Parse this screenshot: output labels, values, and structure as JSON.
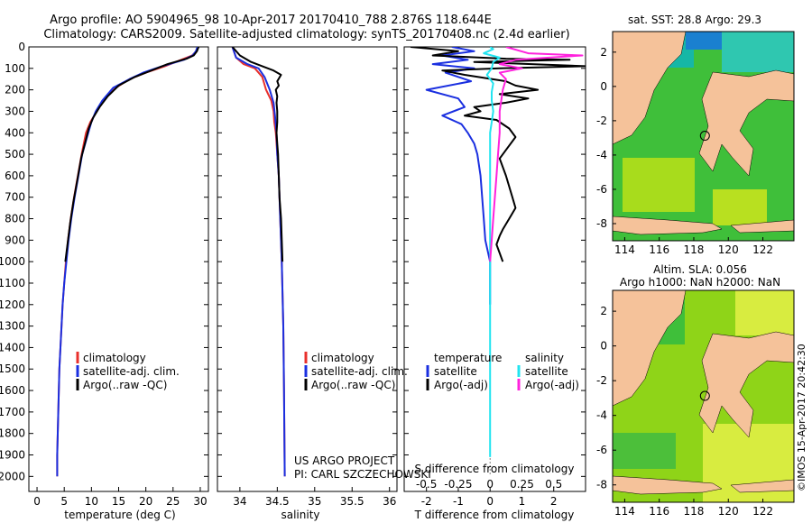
{
  "header": {
    "line1": "Argo profile: AO 5904965_98 10-Apr-2017 20170410_788 2.876S 118.644E",
    "line2": "Climatology: CARS2009. Satellite-adjusted climatology: synTS_20170408.nc (2.4d earlier)"
  },
  "credits": {
    "project": "US ARGO PROJECT",
    "pi": "PI: CARL SZCZECHOWSKI",
    "stamp": "©IMOS 15-Apr-2017 20:42:30"
  },
  "colors": {
    "climatology": "#e8302c",
    "satellite": "#1a2fe0",
    "argo": "#000000",
    "sal_satellite": "#22e4f0",
    "sal_argo": "#ff22dd",
    "land": "#f5c29a"
  },
  "chart_data": [
    {
      "type": "line",
      "id": "temperature",
      "xlabel": "temperature (deg C)",
      "xlim": [
        -1.5,
        31.5
      ],
      "xticks": [
        0,
        5,
        10,
        15,
        20,
        25,
        30
      ],
      "ylim": [
        2070,
        0
      ],
      "yticks": [
        0,
        100,
        200,
        300,
        400,
        500,
        600,
        700,
        800,
        900,
        1000,
        1100,
        1200,
        1300,
        1400,
        1500,
        1600,
        1700,
        1800,
        1900,
        2000
      ],
      "legend": [
        "climatology",
        "satellite-adj. clim.",
        "Argo(..raw -QC)"
      ],
      "series": [
        {
          "name": "climatology",
          "color": "#e8302c",
          "points": [
            [
              29.6,
              0
            ],
            [
              29.3,
              20
            ],
            [
              28.5,
              40
            ],
            [
              26.5,
              60
            ],
            [
              23.5,
              90
            ],
            [
              20,
              120
            ],
            [
              17,
              150
            ],
            [
              14.5,
              190
            ],
            [
              12.5,
              240
            ],
            [
              11,
              300
            ],
            [
              9.8,
              350
            ],
            [
              9,
              400
            ],
            [
              8.2,
              500
            ],
            [
              7.5,
              600
            ],
            [
              6.8,
              700
            ],
            [
              6.2,
              800
            ],
            [
              5.7,
              900
            ],
            [
              5.3,
              1000
            ],
            [
              5,
              1100
            ],
            [
              4.7,
              1200
            ],
            [
              4.5,
              1300
            ],
            [
              4.3,
              1400
            ],
            [
              4.1,
              1500
            ],
            [
              4,
              1600
            ],
            [
              3.9,
              1700
            ],
            [
              3.8,
              1800
            ],
            [
              3.7,
              1900
            ],
            [
              3.7,
              2000
            ]
          ]
        },
        {
          "name": "satellite-adj. clim.",
          "color": "#1a2fe0",
          "points": [
            [
              29.5,
              0
            ],
            [
              29.2,
              20
            ],
            [
              28.6,
              40
            ],
            [
              27,
              60
            ],
            [
              23,
              90
            ],
            [
              19.5,
              120
            ],
            [
              17,
              150
            ],
            [
              14,
              190
            ],
            [
              12,
              250
            ],
            [
              10.8,
              300
            ],
            [
              10,
              350
            ],
            [
              9.2,
              420
            ],
            [
              8.3,
              500
            ],
            [
              7.6,
              600
            ],
            [
              6.9,
              700
            ],
            [
              6.3,
              800
            ],
            [
              5.8,
              900
            ],
            [
              5.4,
              1000
            ],
            [
              5,
              1100
            ],
            [
              4.7,
              1200
            ],
            [
              4.5,
              1300
            ],
            [
              4.3,
              1400
            ],
            [
              4.1,
              1500
            ],
            [
              4,
              1600
            ],
            [
              3.9,
              1700
            ],
            [
              3.8,
              1800
            ],
            [
              3.7,
              1900
            ],
            [
              3.7,
              2000
            ]
          ]
        },
        {
          "name": "Argo(..raw -QC)",
          "color": "#000000",
          "points": [
            [
              29.7,
              0
            ],
            [
              29.4,
              20
            ],
            [
              28.8,
              40
            ],
            [
              27.5,
              55
            ],
            [
              24,
              80
            ],
            [
              21,
              110
            ],
            [
              18,
              140
            ],
            [
              15,
              180
            ],
            [
              13,
              230
            ],
            [
              11.5,
              280
            ],
            [
              10.3,
              330
            ],
            [
              9.5,
              380
            ],
            [
              8.8,
              450
            ],
            [
              8.1,
              520
            ],
            [
              7.4,
              620
            ],
            [
              6.7,
              720
            ],
            [
              6.1,
              820
            ],
            [
              5.6,
              920
            ],
            [
              5.2,
              1000
            ]
          ]
        }
      ]
    },
    {
      "type": "line",
      "id": "salinity",
      "xlabel": "salinity",
      "xlim": [
        33.7,
        36.1
      ],
      "xticks": [
        34,
        34.5,
        35,
        35.5,
        36
      ],
      "ylim": [
        2070,
        0
      ],
      "legend": [
        "climatology",
        "satellite-adj. clim.",
        "Argo(..raw -QC)"
      ],
      "series": [
        {
          "name": "climatology",
          "color": "#e8302c",
          "points": [
            [
              33.9,
              0
            ],
            [
              33.95,
              50
            ],
            [
              34.05,
              80
            ],
            [
              34.2,
              100
            ],
            [
              34.3,
              140
            ],
            [
              34.35,
              200
            ],
            [
              34.42,
              250
            ],
            [
              34.45,
              300
            ],
            [
              34.46,
              350
            ],
            [
              34.48,
              400
            ],
            [
              34.5,
              500
            ],
            [
              34.52,
              600
            ],
            [
              34.54,
              800
            ],
            [
              34.56,
              1000
            ],
            [
              34.58,
              1300
            ],
            [
              34.59,
              1600
            ],
            [
              34.6,
              2000
            ]
          ]
        },
        {
          "name": "satellite-adj. clim.",
          "color": "#1a2fe0",
          "points": [
            [
              33.9,
              0
            ],
            [
              33.95,
              50
            ],
            [
              34.1,
              80
            ],
            [
              34.25,
              100
            ],
            [
              34.33,
              140
            ],
            [
              34.4,
              200
            ],
            [
              34.45,
              260
            ],
            [
              34.47,
              320
            ],
            [
              34.49,
              400
            ],
            [
              34.5,
              500
            ],
            [
              34.52,
              600
            ],
            [
              34.54,
              800
            ],
            [
              34.56,
              1000
            ],
            [
              34.58,
              1300
            ],
            [
              34.59,
              1600
            ],
            [
              34.6,
              2000
            ]
          ]
        },
        {
          "name": "Argo(..raw -QC)",
          "color": "#000000",
          "points": [
            [
              33.9,
              0
            ],
            [
              34,
              40
            ],
            [
              34.15,
              70
            ],
            [
              34.3,
              90
            ],
            [
              34.45,
              110
            ],
            [
              34.55,
              130
            ],
            [
              34.5,
              160
            ],
            [
              34.52,
              180
            ],
            [
              34.48,
              200
            ],
            [
              34.5,
              230
            ],
            [
              34.49,
              260
            ],
            [
              34.5,
              300
            ],
            [
              34.5,
              350
            ],
            [
              34.49,
              400
            ],
            [
              34.5,
              450
            ],
            [
              34.51,
              500
            ],
            [
              34.52,
              600
            ],
            [
              34.53,
              700
            ],
            [
              34.55,
              800
            ],
            [
              34.56,
              900
            ],
            [
              34.57,
              1000
            ]
          ]
        }
      ]
    },
    {
      "type": "line",
      "id": "differences",
      "xlabel": "T difference from climatology",
      "xlabel_top": "S difference from climatology",
      "xlim": [
        -2.7,
        3.0
      ],
      "xticks": [
        -2,
        -1,
        0,
        1,
        2
      ],
      "sticks": [
        -0.5,
        -0.25,
        0,
        0.25,
        0.5
      ],
      "sticks_scale": 4,
      "ylim": [
        2070,
        0
      ],
      "legend_headers": [
        "temperature",
        "salinity"
      ],
      "legend": [
        "satellite",
        "Argo(-adj)",
        "satellite",
        "Argo(-adj)"
      ],
      "series": [
        {
          "name": "temperature satellite",
          "color": "#1a2fe0",
          "points": [
            [
              -1.2,
              0
            ],
            [
              -0.5,
              20
            ],
            [
              -1.5,
              40
            ],
            [
              -0.7,
              60
            ],
            [
              -1.8,
              80
            ],
            [
              -0.5,
              100
            ],
            [
              -1.4,
              120
            ],
            [
              -0.6,
              160
            ],
            [
              -2.0,
              200
            ],
            [
              -1.0,
              240
            ],
            [
              -0.8,
              280
            ],
            [
              -1.5,
              320
            ],
            [
              -0.9,
              360
            ],
            [
              -0.7,
              400
            ],
            [
              -0.5,
              450
            ],
            [
              -0.4,
              500
            ],
            [
              -0.3,
              600
            ],
            [
              -0.25,
              700
            ],
            [
              -0.2,
              800
            ],
            [
              -0.15,
              900
            ],
            [
              0,
              1000
            ],
            [
              0,
              1200
            ]
          ]
        },
        {
          "name": "temperature Argo",
          "color": "#000000",
          "points": [
            [
              -2.5,
              0
            ],
            [
              -1.0,
              20
            ],
            [
              -1.8,
              40
            ],
            [
              0.5,
              55
            ],
            [
              2.5,
              60
            ],
            [
              -0.5,
              70
            ],
            [
              3.0,
              90
            ],
            [
              0.3,
              100
            ],
            [
              -1.5,
              110
            ],
            [
              -0.8,
              130
            ],
            [
              0.5,
              160
            ],
            [
              0.8,
              180
            ],
            [
              1.5,
              200
            ],
            [
              0.3,
              220
            ],
            [
              1.2,
              240
            ],
            [
              0.5,
              260
            ],
            [
              -0.5,
              280
            ],
            [
              -0.3,
              300
            ],
            [
              -0.8,
              320
            ],
            [
              0.2,
              340
            ],
            [
              0.6,
              380
            ],
            [
              0.8,
              420
            ],
            [
              0.5,
              480
            ],
            [
              0.3,
              520
            ],
            [
              0.5,
              600
            ],
            [
              0.7,
              700
            ],
            [
              0.8,
              750
            ],
            [
              0.6,
              800
            ],
            [
              0.4,
              850
            ],
            [
              0.3,
              880
            ],
            [
              0.2,
              920
            ],
            [
              0.3,
              960
            ],
            [
              0.4,
              1000
            ]
          ]
        },
        {
          "name": "salinity satellite",
          "color": "#22e4f0",
          "points": [
            [
              0,
              0
            ],
            [
              0.1,
              10
            ],
            [
              -0.2,
              30
            ],
            [
              0.3,
              50
            ],
            [
              0.1,
              70
            ],
            [
              0.05,
              100
            ],
            [
              -0.1,
              130
            ],
            [
              0.1,
              170
            ],
            [
              0.05,
              210
            ],
            [
              0.05,
              250
            ],
            [
              0.1,
              300
            ],
            [
              0.05,
              350
            ],
            [
              0,
              400
            ],
            [
              0,
              600
            ],
            [
              0,
              1000
            ],
            [
              0,
              1800
            ],
            [
              0,
              1910
            ]
          ]
        },
        {
          "name": "salinity Argo",
          "color": "#ff22dd",
          "points": [
            [
              0.5,
              0
            ],
            [
              1.2,
              30
            ],
            [
              2.9,
              40
            ],
            [
              0.8,
              60
            ],
            [
              0.3,
              80
            ],
            [
              1.0,
              100
            ],
            [
              0.3,
              120
            ],
            [
              0.5,
              150
            ],
            [
              0.4,
              200
            ],
            [
              0.3,
              300
            ],
            [
              0.3,
              400
            ],
            [
              0.25,
              500
            ],
            [
              0.2,
              600
            ],
            [
              0.15,
              700
            ],
            [
              0.1,
              800
            ],
            [
              0.05,
              900
            ],
            [
              0,
              1000
            ]
          ]
        }
      ]
    }
  ],
  "maps": [
    {
      "id": "sst-map",
      "title": "sat. SST: 28.8 Argo: 29.3",
      "xticks": [
        114,
        116,
        118,
        120,
        122
      ],
      "yticks": [
        2,
        0,
        -2,
        -4,
        -6,
        -8
      ],
      "xlim": [
        113.3,
        123.8
      ],
      "ylim": [
        -9,
        3.2
      ],
      "profile_location": [
        118.644,
        -2.876
      ]
    },
    {
      "id": "sla-map",
      "title": "Altim. SLA: 0.056",
      "subtitle": "Argo h1000: NaN h2000: NaN",
      "xticks": [
        114,
        116,
        118,
        120,
        122
      ],
      "yticks": [
        2,
        0,
        -2,
        -4,
        -6,
        -8
      ],
      "xlim": [
        113.3,
        123.8
      ],
      "ylim": [
        -9,
        3.2
      ],
      "profile_location": [
        118.644,
        -2.876
      ]
    }
  ]
}
